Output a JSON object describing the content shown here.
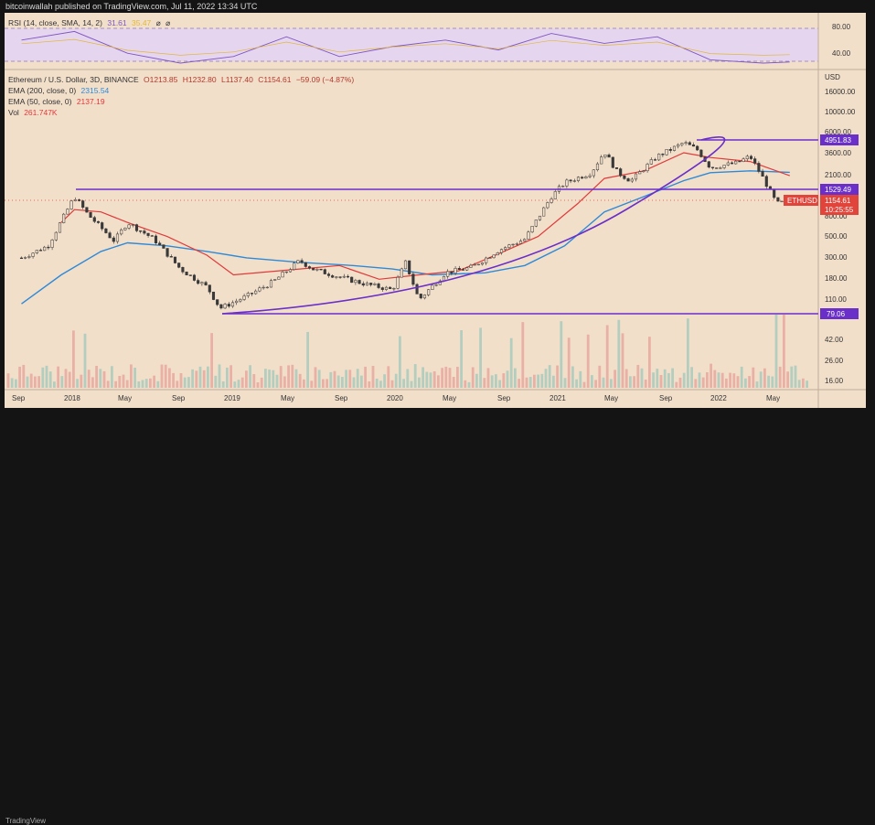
{
  "header": {
    "published": "bitcoinwallah published on TradingView.com, Jul 11, 2022 13:34 UTC"
  },
  "footer": {
    "logo_text": "TradingView"
  },
  "rsi": {
    "label": "RSI (14, close, SMA, 14, 2)",
    "value1": "31.61",
    "value2": "35.47",
    "glyph1": "⌀",
    "glyph2": "⌀",
    "ticks": [
      "80.00",
      "40.00"
    ]
  },
  "legend": {
    "symbol": "Ethereum / U.S. Dollar, 3D, BINANCE",
    "open": "O1213.85",
    "high": "H1232.80",
    "low": "L1137.40",
    "close": "C1154.61",
    "change": "−59.09 (−4.87%)",
    "ema200_label": "EMA (200, close, 0)",
    "ema200_value": "2315.54",
    "ema50_label": "EMA (50, close, 0)",
    "ema50_value": "2137.19",
    "vol_label": "Vol",
    "vol_value": "261.747K"
  },
  "price_axis": {
    "unit": "USD",
    "ticks": [
      "16000.00",
      "10000.00",
      "6000.00",
      "3600.00",
      "2100.00",
      "800.00",
      "500.00",
      "300.00",
      "180.00",
      "110.00",
      "42.00",
      "26.00",
      "16.00"
    ]
  },
  "price_badges": {
    "top": "4951.83",
    "mid": "1529.49",
    "ticker": "ETHUSD",
    "last": "1154.61",
    "countdown": "10:25:55",
    "bottom": "79.06"
  },
  "time_axis": [
    "Sep",
    "2018",
    "May",
    "Sep",
    "2019",
    "May",
    "Sep",
    "2020",
    "May",
    "Sep",
    "2021",
    "May",
    "Sep",
    "2022",
    "May"
  ],
  "colors": {
    "background": "#f2dfca",
    "ema200": "#2e8ad8",
    "ema50": "#e03a3a",
    "trendlines": "#6a2fc9",
    "rsi_line": "#7e57c2",
    "up_candle": "#3a3a3a",
    "down_candle": "#3a3a3a",
    "badge_purple": "#6a2fc9",
    "badge_red": "#e0443a"
  },
  "chart_data": {
    "type": "line",
    "scale": "log",
    "title": "Ethereum / U.S. Dollar, 3D, BINANCE",
    "ylabel": "USD",
    "series": [
      {
        "name": "ETHUSD",
        "x": [
          "2017-09",
          "2017-11",
          "2018-01",
          "2018-02",
          "2018-04",
          "2018-05",
          "2018-07",
          "2018-09",
          "2018-11",
          "2018-12",
          "2019-02",
          "2019-04",
          "2019-06",
          "2019-07",
          "2019-09",
          "2019-11",
          "2020-01",
          "2020-02",
          "2020-03",
          "2020-05",
          "2020-07",
          "2020-09",
          "2020-11",
          "2021-01",
          "2021-02",
          "2021-04",
          "2021-05",
          "2021-06",
          "2021-07",
          "2021-09",
          "2021-11",
          "2021-12",
          "2022-01",
          "2022-03",
          "2022-04",
          "2022-05",
          "2022-06",
          "2022-07"
        ],
        "values": [
          300,
          400,
          1300,
          850,
          450,
          700,
          470,
          230,
          150,
          90,
          120,
          170,
          280,
          230,
          190,
          160,
          140,
          270,
          110,
          210,
          240,
          360,
          470,
          1300,
          1800,
          2300,
          3800,
          2300,
          1900,
          3400,
          4700,
          4000,
          2600,
          2900,
          3400,
          2000,
          1100,
          1154.61
        ]
      },
      {
        "name": "EMA (200, close, 0)",
        "x": [
          "2017-09",
          "2017-12",
          "2018-03",
          "2018-05",
          "2018-08",
          "2018-11",
          "2019-02",
          "2019-06",
          "2019-10",
          "2020-01",
          "2020-04",
          "2020-08",
          "2020-11",
          "2021-02",
          "2021-05",
          "2021-08",
          "2021-11",
          "2022-01",
          "2022-04",
          "2022-07"
        ],
        "values": [
          100,
          200,
          350,
          430,
          400,
          350,
          300,
          270,
          250,
          230,
          200,
          210,
          250,
          400,
          900,
          1300,
          1900,
          2300,
          2400,
          2315.54
        ]
      },
      {
        "name": "EMA (50, close, 0)",
        "x": [
          "2017-12",
          "2018-01",
          "2018-03",
          "2018-05",
          "2018-08",
          "2018-11",
          "2019-01",
          "2019-06",
          "2019-09",
          "2019-12",
          "2020-03",
          "2020-06",
          "2020-09",
          "2020-12",
          "2021-03",
          "2021-05",
          "2021-08",
          "2021-11",
          "2022-01",
          "2022-04",
          "2022-07"
        ],
        "values": [
          700,
          950,
          900,
          700,
          500,
          320,
          200,
          230,
          250,
          180,
          200,
          220,
          330,
          500,
          1100,
          2000,
          2400,
          3700,
          3300,
          3000,
          2137.19
        ]
      },
      {
        "name": "RSI (14, close, SMA, 14, 2)",
        "x": [
          "2017-09",
          "2018-01",
          "2018-05",
          "2018-09",
          "2019-01",
          "2019-05",
          "2019-09",
          "2020-01",
          "2020-05",
          "2020-09",
          "2021-01",
          "2021-05",
          "2021-09",
          "2022-01",
          "2022-05",
          "2022-07"
        ],
        "values": [
          65,
          78,
          45,
          30,
          40,
          70,
          40,
          55,
          65,
          50,
          75,
          60,
          70,
          35,
          30,
          31.61
        ]
      }
    ],
    "horizontal_lines": [
      4951.83,
      1529.49,
      79.06
    ]
  }
}
